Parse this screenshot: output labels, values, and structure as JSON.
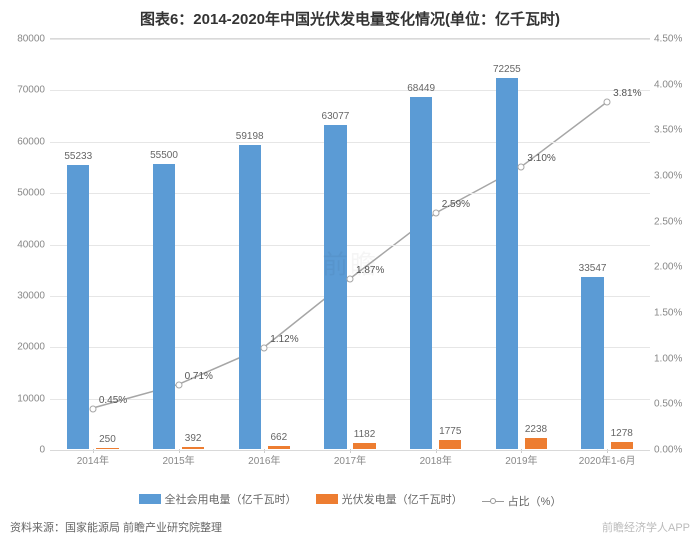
{
  "title": "图表6：2014-2020年中国光伏发电量变化情况(单位：亿千瓦时)",
  "source_label": "资料来源：国家能源局 前瞻产业研究院整理",
  "watermark_center": "前瞻",
  "watermark_app": "前瞻经济学人APP",
  "chart": {
    "type": "bar+line",
    "background_color": "#ffffff",
    "grid_color": "#e6e6e6",
    "axis_color": "#d9d9d9",
    "label_fontsize": 10,
    "categories": [
      "2014年",
      "2015年",
      "2016年",
      "2017年",
      "2018年",
      "2019年",
      "2020年1-6月"
    ],
    "y_left": {
      "min": 0,
      "max": 80000,
      "step": 10000,
      "unit": ""
    },
    "y_right": {
      "min": 0,
      "max": 4.5,
      "step": 0.5,
      "suffix": "%",
      "decimals": 2
    },
    "series": {
      "total": {
        "label": "全社会用电量（亿千瓦时）",
        "color": "#5b9bd5",
        "bar_width_frac": 0.26,
        "offset_frac": -0.17,
        "values": [
          55233,
          55500,
          59198,
          63077,
          68449,
          72255,
          33547
        ]
      },
      "pv": {
        "label": "光伏发电量（亿千瓦时）",
        "color": "#ed7d31",
        "bar_width_frac": 0.26,
        "offset_frac": 0.17,
        "values": [
          250,
          392,
          662,
          1182,
          1775,
          2238,
          1278
        ]
      },
      "ratio": {
        "label": "占比（%）",
        "color": "#a6a6a6",
        "line_width": 1.5,
        "values": [
          0.45,
          0.71,
          1.12,
          1.87,
          2.59,
          3.1,
          3.81
        ],
        "value_labels": [
          "0.45%",
          "0.71%",
          "1.12%",
          "1.87%",
          "2.59%",
          "3.10%",
          "3.81%"
        ]
      }
    }
  }
}
